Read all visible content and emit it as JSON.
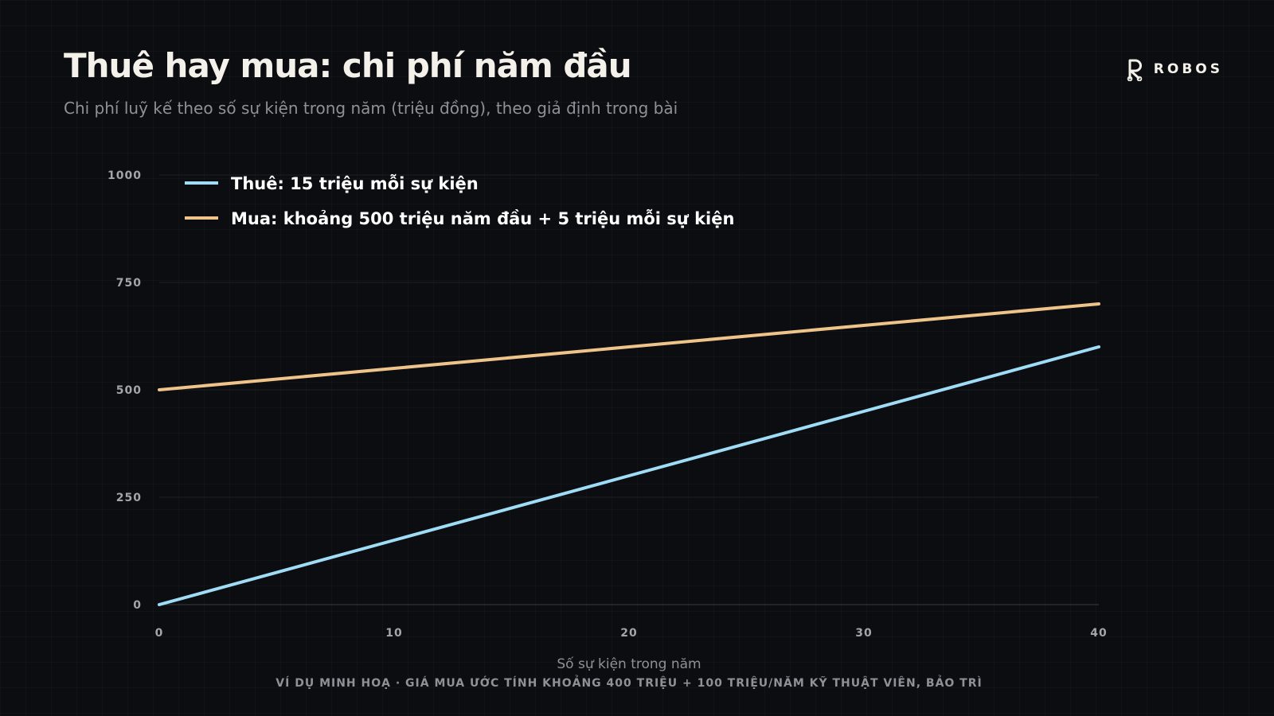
{
  "header": {
    "title": "Thuê hay mua: chi phí năm đầu",
    "subtitle": "Chi phí luỹ kế theo số sự kiện trong năm (triệu đồng), theo giả định trong bài",
    "brand": "ROBOS"
  },
  "footnote": "VÍ DỤ MINH HOẠ · GIÁ MUA ƯỚC TÍNH KHOẢNG 400 TRIỆU + 100 TRIỆU/NĂM KỸ THUẬT VIÊN, BẢO TRÌ",
  "colors": {
    "background": "#0c0d10",
    "rent": "#9fdcf5",
    "buy": "#efc48a",
    "grid": "#1c1e24",
    "axis_text": "#a3a5ab"
  },
  "chart_data": {
    "type": "line",
    "xlabel": "Số sự kiện trong năm",
    "ylabel": "",
    "xlim": [
      0,
      40
    ],
    "ylim": [
      0,
      1000
    ],
    "x_ticks": [
      0,
      10,
      20,
      30,
      40
    ],
    "y_ticks": [
      0,
      250,
      500,
      750,
      1000
    ],
    "grid": true,
    "legend_position": "top-left",
    "series": [
      {
        "name": "Thuê: 15 triệu mỗi sự kiện",
        "color": "#9fdcf5",
        "x": [
          0,
          10,
          20,
          30,
          40
        ],
        "y": [
          0,
          150,
          300,
          450,
          600
        ]
      },
      {
        "name": "Mua: khoảng 500 triệu năm đầu + 5 triệu mỗi sự kiện",
        "color": "#efc48a",
        "x": [
          0,
          10,
          20,
          30,
          40
        ],
        "y": [
          500,
          550,
          600,
          650,
          700
        ]
      }
    ]
  }
}
